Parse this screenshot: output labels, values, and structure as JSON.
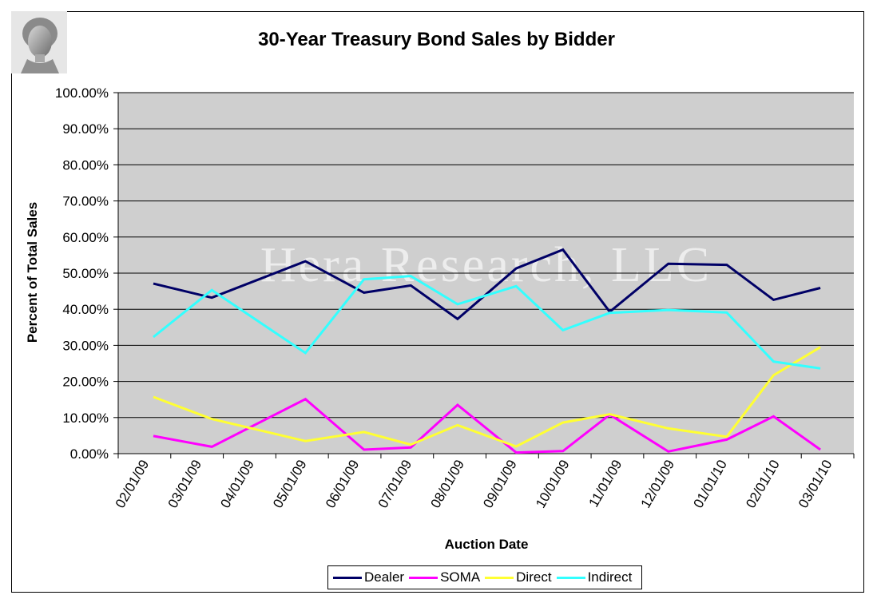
{
  "chart_data": {
    "type": "line",
    "title": "30-Year Treasury Bond Sales by Bidder",
    "xlabel": "Auction Date",
    "ylabel": "Percent of Total Sales",
    "watermark": "Hera Research, LLC",
    "ylim": [
      0,
      100
    ],
    "y_ticks": [
      "0.00%",
      "10.00%",
      "20.00%",
      "30.00%",
      "40.00%",
      "50.00%",
      "60.00%",
      "70.00%",
      "80.00%",
      "90.00%",
      "100.00%"
    ],
    "grid": true,
    "legend_position": "bottom",
    "categories": [
      "02/01/09",
      "03/01/09",
      "04/01/09",
      "05/01/09",
      "06/01/09",
      "07/01/09",
      "08/01/09",
      "09/01/09",
      "10/01/09",
      "11/01/09",
      "12/01/09",
      "01/01/10",
      "02/01/10",
      "03/01/10"
    ],
    "data_points": [
      {
        "date": "2009-02-05",
        "dealer": 47.1,
        "soma": 4.9,
        "direct": 15.7,
        "indirect": 32.3
      },
      {
        "date": "2009-03-12",
        "dealer": 43.2,
        "soma": 1.9,
        "direct": 9.6,
        "indirect": 45.3
      },
      {
        "date": "2009-05-07",
        "dealer": 53.3,
        "soma": 15.1,
        "direct": 3.5,
        "indirect": 27.9
      },
      {
        "date": "2009-06-11",
        "dealer": 44.6,
        "soma": 1.1,
        "direct": 6.0,
        "indirect": 48.3
      },
      {
        "date": "2009-07-09",
        "dealer": 46.6,
        "soma": 1.7,
        "direct": 2.5,
        "indirect": 49.2
      },
      {
        "date": "2009-08-06",
        "dealer": 37.3,
        "soma": 13.5,
        "direct": 7.9,
        "indirect": 41.4
      },
      {
        "date": "2009-09-10",
        "dealer": 51.3,
        "soma": 0.3,
        "direct": 2.0,
        "indirect": 46.4
      },
      {
        "date": "2009-10-08",
        "dealer": 56.5,
        "soma": 0.7,
        "direct": 8.6,
        "indirect": 34.2
      },
      {
        "date": "2009-11-05",
        "dealer": 39.3,
        "soma": 10.8,
        "direct": 10.9,
        "indirect": 39.0
      },
      {
        "date": "2009-12-10",
        "dealer": 52.6,
        "soma": 0.6,
        "direct": 7.0,
        "indirect": 39.8
      },
      {
        "date": "2010-01-14",
        "dealer": 52.3,
        "soma": 3.9,
        "direct": 4.7,
        "indirect": 39.1
      },
      {
        "date": "2010-02-11",
        "dealer": 42.6,
        "soma": 10.3,
        "direct": 21.7,
        "indirect": 25.5
      },
      {
        "date": "2010-03-11",
        "dealer": 45.9,
        "soma": 1.1,
        "direct": 29.5,
        "indirect": 23.6
      }
    ],
    "series": [
      {
        "name": "Dealer",
        "key": "dealer",
        "color": "#000066"
      },
      {
        "name": "SOMA",
        "key": "soma",
        "color": "#ff00ff"
      },
      {
        "name": "Direct",
        "key": "direct",
        "color": "#ffff33"
      },
      {
        "name": "Indirect",
        "key": "indirect",
        "color": "#33ffff"
      }
    ]
  },
  "colors": {
    "plot_background": "#cfcfcf",
    "gridline": "#000000"
  }
}
